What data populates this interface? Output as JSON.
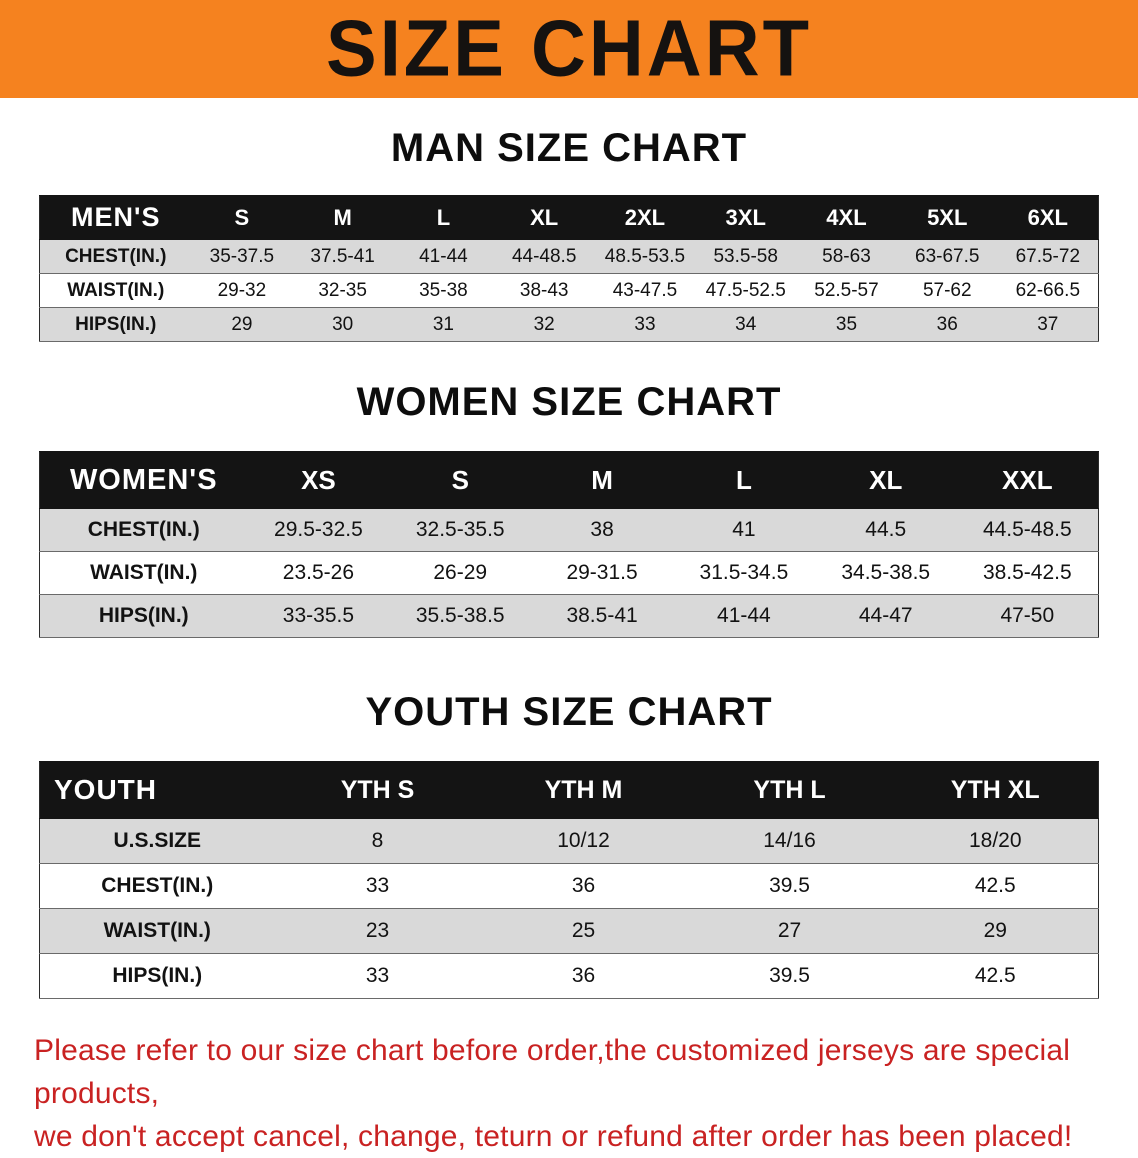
{
  "banner": {
    "title": "SIZE CHART"
  },
  "colors": {
    "banner_bg": "#F5821F",
    "table_header_bg": "#141414",
    "row_stripe": "#D9D9D9",
    "note_red": "#C92222"
  },
  "sections": {
    "men": {
      "heading": "MAN SIZE CHART",
      "table": {
        "header": [
          "MEN'S",
          "S",
          "M",
          "L",
          "XL",
          "2XL",
          "3XL",
          "4XL",
          "5XL",
          "6XL"
        ],
        "rows": [
          [
            "CHEST(IN.)",
            "35-37.5",
            "37.5-41",
            "41-44",
            "44-48.5",
            "48.5-53.5",
            "53.5-58",
            "58-63",
            "63-67.5",
            "67.5-72"
          ],
          [
            "WAIST(IN.)",
            "29-32",
            "32-35",
            "35-38",
            "38-43",
            "43-47.5",
            "47.5-52.5",
            "52.5-57",
            "57-62",
            "62-66.5"
          ],
          [
            "HIPS(IN.)",
            "29",
            "30",
            "31",
            "32",
            "33",
            "34",
            "35",
            "36",
            "37"
          ]
        ]
      }
    },
    "women": {
      "heading": "WOMEN SIZE CHART",
      "table": {
        "header": [
          "WOMEN'S",
          "XS",
          "S",
          "M",
          "L",
          "XL",
          "XXL"
        ],
        "rows": [
          [
            "CHEST(IN.)",
            "29.5-32.5",
            "32.5-35.5",
            "38",
            "41",
            "44.5",
            "44.5-48.5"
          ],
          [
            "WAIST(IN.)",
            "23.5-26",
            "26-29",
            "29-31.5",
            "31.5-34.5",
            "34.5-38.5",
            "38.5-42.5"
          ],
          [
            "HIPS(IN.)",
            "33-35.5",
            "35.5-38.5",
            "38.5-41",
            "41-44",
            "44-47",
            "47-50"
          ]
        ]
      }
    },
    "youth": {
      "heading": "YOUTH SIZE CHART",
      "table": {
        "header": [
          "YOUTH",
          "YTH S",
          "YTH M",
          "YTH L",
          "YTH XL"
        ],
        "rows": [
          [
            "U.S.SIZE",
            "8",
            "10/12",
            "14/16",
            "18/20"
          ],
          [
            "CHEST(IN.)",
            "33",
            "36",
            "39.5",
            "42.5"
          ],
          [
            "WAIST(IN.)",
            "23",
            "25",
            "27",
            "29"
          ],
          [
            "HIPS(IN.)",
            "33",
            "36",
            "39.5",
            "42.5"
          ]
        ]
      }
    }
  },
  "footer": {
    "line1": "Please refer to our size chart before order,the customized jerseys are special products,",
    "line2": "we don't accept cancel, change, teturn or refund after order has been placed!"
  }
}
